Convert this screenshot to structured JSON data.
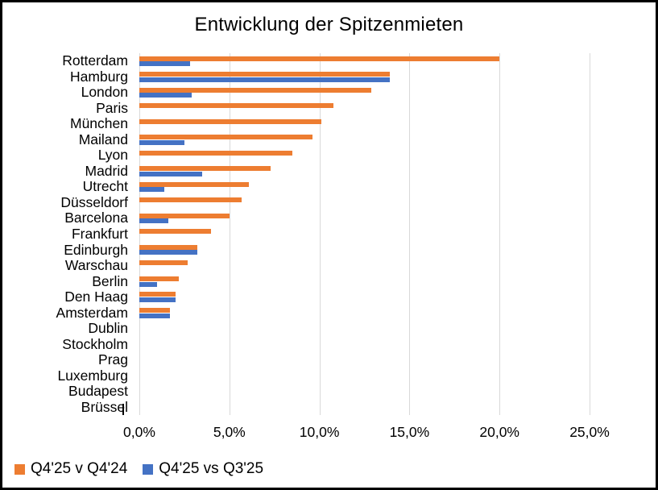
{
  "title": "Entwicklung der Spitzenmieten",
  "colors": {
    "series1": "#ED7D31",
    "series2": "#4472C4",
    "gridline": "#D9D9D9",
    "text": "#000000",
    "background": "#FFFFFF",
    "frame_border": "#000000"
  },
  "chart_data": {
    "type": "bar",
    "orientation": "horizontal",
    "title": "Entwicklung der Spitzenmieten",
    "categories": [
      "Rotterdam",
      "Hamburg",
      "London",
      "Paris",
      "München",
      "Mailand",
      "Lyon",
      "Madrid",
      "Utrecht",
      "Düsseldorf",
      "Barcelona",
      "Frankfurt",
      "Edinburgh",
      "Warschau",
      "Berlin",
      "Den Haag",
      "Amsterdam",
      "Dublin",
      "Stockholm",
      "Prag",
      "Luxemburg",
      "Budapest",
      "Brüssel"
    ],
    "series": [
      {
        "name": "Q4'25 v Q4'24",
        "color": "#ED7D31",
        "values": [
          20.0,
          13.9,
          12.9,
          10.8,
          10.1,
          9.6,
          8.5,
          7.3,
          6.1,
          5.7,
          5.0,
          4.0,
          3.2,
          2.7,
          2.2,
          2.0,
          1.7,
          0,
          0,
          0,
          0,
          0,
          0
        ]
      },
      {
        "name": "Q4'25 vs Q3'25",
        "color": "#4472C4",
        "values": [
          2.8,
          13.9,
          2.9,
          0,
          0,
          2.5,
          0,
          3.5,
          1.4,
          0,
          1.6,
          0,
          3.2,
          0,
          1.0,
          2.0,
          1.7,
          0,
          0,
          0,
          0,
          0,
          0
        ]
      }
    ],
    "xlim": [
      0,
      25
    ],
    "xtick_step": 5,
    "xtick_labels": [
      "0,0%",
      "5,0%",
      "10,0%",
      "15,0%",
      "20,0%",
      "25,0%"
    ],
    "grid": true,
    "legend_position": "bottom-left"
  }
}
